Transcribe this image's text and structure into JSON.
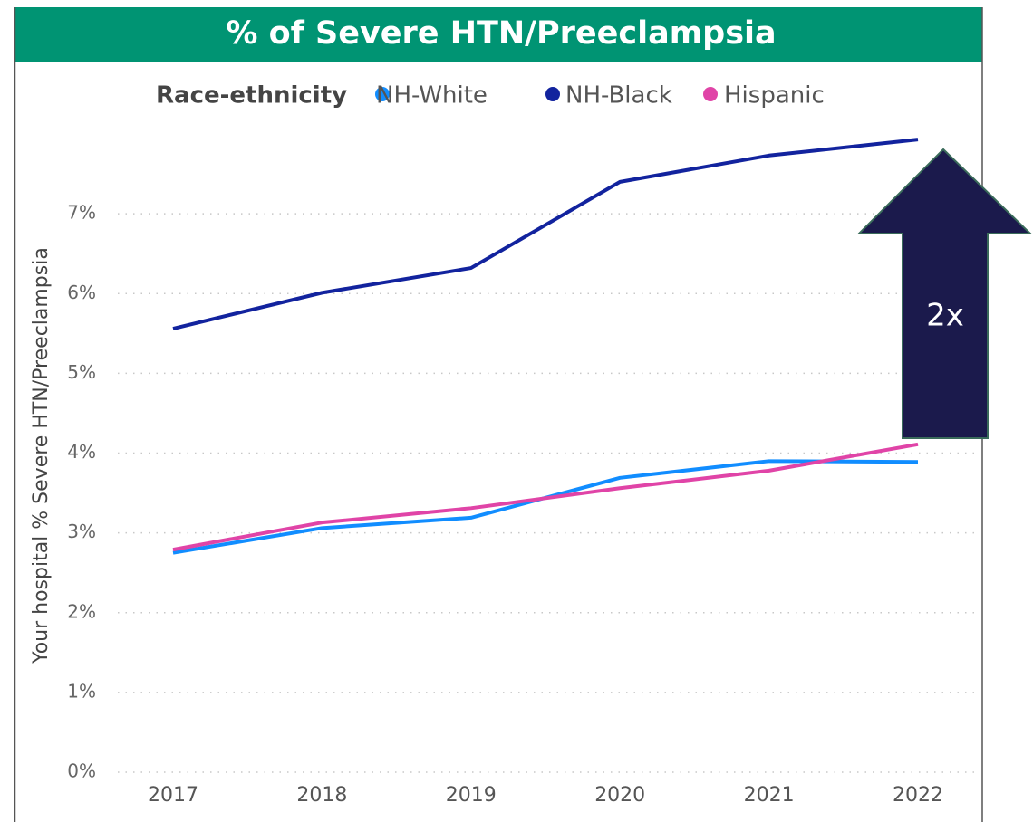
{
  "chart_data": {
    "type": "line",
    "title": "% of Severe HTN/Preeclampsia",
    "legend_title": "Race-ethnicity",
    "y_label": "Your hospital % Severe HTN/Preeclampsia",
    "x": [
      "2017",
      "2018",
      "2019",
      "2020",
      "2021",
      "2022"
    ],
    "series": [
      {
        "name": "NH-White",
        "color": "#118dff",
        "values": [
          2.75,
          3.06,
          3.19,
          3.69,
          3.9,
          3.89
        ]
      },
      {
        "name": "NH-Black",
        "color": "#12239e",
        "values": [
          5.56,
          6.01,
          6.32,
          7.4,
          7.73,
          7.93
        ]
      },
      {
        "name": "Hispanic",
        "color": "#e044a7",
        "values": [
          2.79,
          3.13,
          3.31,
          3.56,
          3.78,
          4.11
        ]
      }
    ],
    "ylim": [
      0,
      8
    ],
    "yticks": [
      {
        "value": 0,
        "label": "0%"
      },
      {
        "value": 1,
        "label": "1%"
      },
      {
        "value": 2,
        "label": "2%"
      },
      {
        "value": 3,
        "label": "3%"
      },
      {
        "value": 4,
        "label": "4%"
      },
      {
        "value": 5,
        "label": "5%"
      },
      {
        "value": 6,
        "label": "6%"
      },
      {
        "value": 7,
        "label": "7%"
      }
    ],
    "grid": true,
    "legend": "top",
    "annotation": "2x"
  }
}
